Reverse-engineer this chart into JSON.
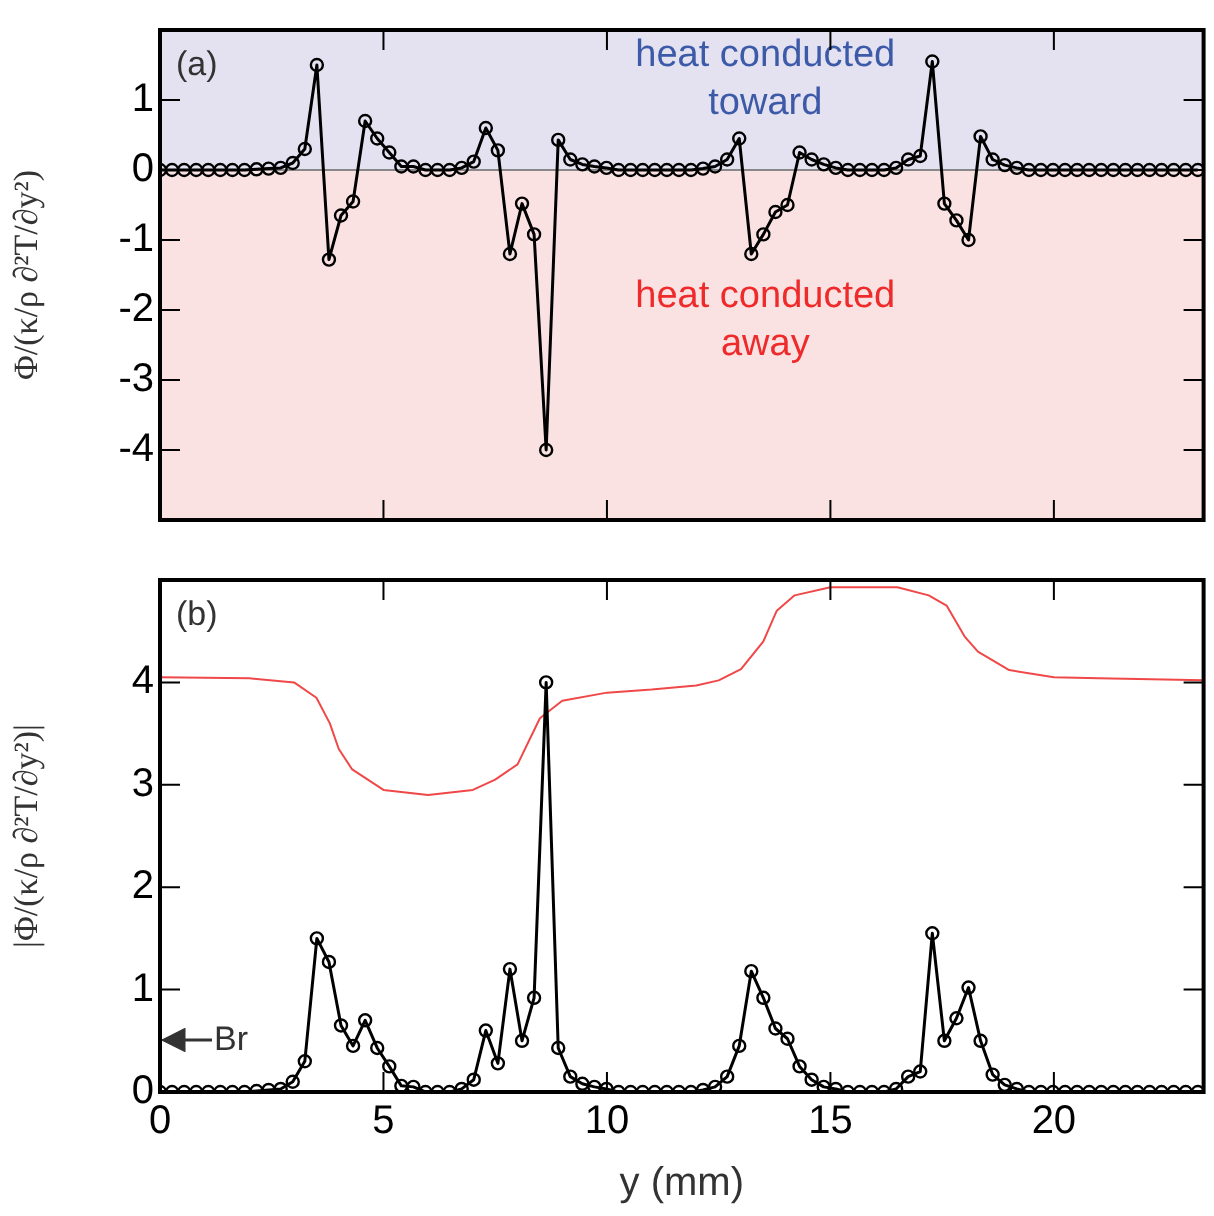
{
  "chart_data": [
    {
      "type": "line",
      "ylabel": "Φ/(κ/ρ ∂²T/∂y²)",
      "xlim": [
        0,
        23.35
      ],
      "ylim": [
        -5,
        2
      ],
      "xticks": [
        0,
        5,
        10,
        15,
        20
      ],
      "yticks": [
        -4,
        -3,
        -2,
        -1,
        0,
        1
      ],
      "tick_labels": "y",
      "marker": "circle",
      "grid": false,
      "bands": [
        {
          "axis": "y",
          "from": 0,
          "to": 2,
          "label": "heat conducted toward",
          "color": "#e4e2f1"
        },
        {
          "axis": "y",
          "from": -5,
          "to": 0,
          "label": "heat conducted away",
          "color": "#fbe2e2"
        }
      ],
      "ref_lines": [
        {
          "axis": "y",
          "value": 0,
          "color": "#888888"
        }
      ],
      "annotations": [
        "(a)"
      ],
      "series": [
        {
          "color": "#000000",
          "x": [
            0,
            0.27,
            0.54,
            0.81,
            1.08,
            1.35,
            1.62,
            1.89,
            2.16,
            2.43,
            2.7,
            2.97,
            3.24,
            3.51,
            3.78,
            4.05,
            4.32,
            4.59,
            4.86,
            5.13,
            5.4,
            5.67,
            5.94,
            6.21,
            6.48,
            6.75,
            7.02,
            7.29,
            7.56,
            7.83,
            8.1,
            8.37,
            8.64,
            8.91,
            9.18,
            9.45,
            9.72,
            9.99,
            10.26,
            10.53,
            10.8,
            11.07,
            11.34,
            11.61,
            11.88,
            12.15,
            12.42,
            12.69,
            12.96,
            13.23,
            13.5,
            13.77,
            14.04,
            14.31,
            14.58,
            14.85,
            15.12,
            15.39,
            15.66,
            15.93,
            16.2,
            16.47,
            16.74,
            17.01,
            17.28,
            17.55,
            17.82,
            18.09,
            18.36,
            18.63,
            18.9,
            19.17,
            19.44,
            19.71,
            19.98,
            20.25,
            20.52,
            20.79,
            21.06,
            21.33,
            21.6,
            21.87,
            22.14,
            22.41,
            22.68,
            22.95,
            23.22
          ],
          "values": [
            0,
            0,
            0,
            0,
            0,
            0,
            0,
            0,
            0.01,
            0.02,
            0.03,
            0.1,
            0.3,
            1.5,
            -1.28,
            -0.65,
            -0.45,
            0.7,
            0.45,
            0.25,
            0.05,
            0.05,
            0,
            0,
            0,
            0.03,
            0.12,
            0.6,
            0.28,
            -1.2,
            -0.48,
            -0.92,
            -4,
            0.43,
            0.15,
            0.08,
            0.05,
            0.03,
            0,
            0,
            0,
            0,
            0,
            0,
            0,
            0.02,
            0.05,
            0.15,
            0.45,
            -1.2,
            -0.92,
            -0.6,
            -0.5,
            0.25,
            0.15,
            0.08,
            0.03,
            0,
            0,
            0,
            0,
            0.03,
            0.15,
            0.2,
            1.55,
            -0.48,
            -0.72,
            -1,
            0.48,
            0.15,
            0.07,
            0.03,
            0,
            0,
            0,
            0,
            0,
            0,
            0,
            0,
            0,
            0,
            0,
            0,
            0,
            0,
            0
          ]
        }
      ]
    },
    {
      "type": "line",
      "xlabel": "y (mm)",
      "ylabel": "|Φ/(κ/ρ ∂²T/∂y²)|",
      "xlim": [
        0,
        23.35
      ],
      "ylim": [
        0,
        5
      ],
      "xticks": [
        0,
        5,
        10,
        15,
        20
      ],
      "yticks": [
        0,
        1,
        2,
        3,
        4
      ],
      "marker": "circle",
      "grid": false,
      "annotations": [
        "(b)"
      ],
      "ref_lines": [
        {
          "axis": "y",
          "value": 0.5,
          "label": "Br",
          "color": "#333333"
        }
      ],
      "series": [
        {
          "color": "#000000",
          "x": [
            0,
            0.27,
            0.54,
            0.81,
            1.08,
            1.35,
            1.62,
            1.89,
            2.16,
            2.43,
            2.7,
            2.97,
            3.24,
            3.51,
            3.78,
            4.05,
            4.32,
            4.59,
            4.86,
            5.13,
            5.4,
            5.67,
            5.94,
            6.21,
            6.48,
            6.75,
            7.02,
            7.29,
            7.56,
            7.83,
            8.1,
            8.37,
            8.64,
            8.91,
            9.18,
            9.45,
            9.72,
            9.99,
            10.26,
            10.53,
            10.8,
            11.07,
            11.34,
            11.61,
            11.88,
            12.15,
            12.42,
            12.69,
            12.96,
            13.23,
            13.5,
            13.77,
            14.04,
            14.31,
            14.58,
            14.85,
            15.12,
            15.39,
            15.66,
            15.93,
            16.2,
            16.47,
            16.74,
            17.01,
            17.28,
            17.55,
            17.82,
            18.09,
            18.36,
            18.63,
            18.9,
            19.17,
            19.44,
            19.71,
            19.98,
            20.25,
            20.52,
            20.79,
            21.06,
            21.33,
            21.6,
            21.87,
            22.14,
            22.41,
            22.68,
            22.95,
            23.22
          ],
          "values": [
            0,
            0,
            0,
            0,
            0,
            0,
            0,
            0,
            0.01,
            0.02,
            0.03,
            0.1,
            0.3,
            1.5,
            1.27,
            0.65,
            0.45,
            0.7,
            0.43,
            0.25,
            0.06,
            0.05,
            0,
            0,
            0,
            0.03,
            0.12,
            0.6,
            0.28,
            1.2,
            0.5,
            0.92,
            4,
            0.43,
            0.15,
            0.08,
            0.05,
            0.03,
            0,
            0,
            0,
            0,
            0,
            0,
            0,
            0.02,
            0.05,
            0.15,
            0.45,
            1.18,
            0.92,
            0.62,
            0.52,
            0.25,
            0.12,
            0.05,
            0.03,
            0,
            0,
            0,
            0,
            0.03,
            0.15,
            0.2,
            1.55,
            0.5,
            0.72,
            1.02,
            0.5,
            0.17,
            0.07,
            0.03,
            0,
            0,
            0,
            0,
            0,
            0,
            0,
            0,
            0,
            0,
            0,
            0,
            0,
            0,
            0
          ]
        },
        {
          "color": "#f04848",
          "marker": "none",
          "x": [
            0,
            2,
            3,
            3.5,
            3.8,
            4,
            4.3,
            5,
            6,
            7,
            7.5,
            8,
            8.5,
            9,
            10,
            11,
            12,
            12.5,
            13,
            13.5,
            13.8,
            14.2,
            15,
            16.5,
            17.2,
            17.6,
            18,
            18.3,
            19,
            20,
            21,
            23.35
          ],
          "values": [
            4.05,
            4.04,
            4,
            3.85,
            3.6,
            3.35,
            3.15,
            2.95,
            2.9,
            2.95,
            3.05,
            3.2,
            3.65,
            3.82,
            3.9,
            3.93,
            3.97,
            4.02,
            4.13,
            4.4,
            4.7,
            4.85,
            4.93,
            4.93,
            4.85,
            4.75,
            4.45,
            4.3,
            4.12,
            4.05,
            4.04,
            4.02
          ]
        }
      ]
    }
  ]
}
